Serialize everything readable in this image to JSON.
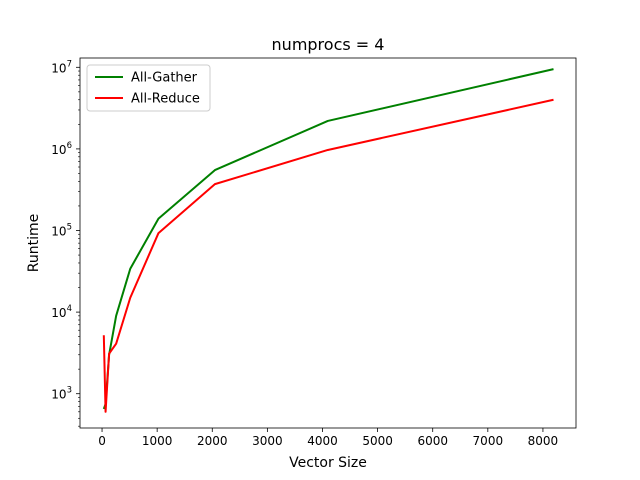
{
  "chart_data": {
    "type": "line",
    "title": "numprocs = 4",
    "xlabel": "Vector Size",
    "ylabel": "Runtime",
    "xlim": [
      -400,
      8600
    ],
    "ylim": [
      380,
      13000000
    ],
    "yscale": "log",
    "grid": false,
    "legend_position": "top-left",
    "x_ticks": [
      {
        "value": 0,
        "label": "0"
      },
      {
        "value": 1000,
        "label": "1000"
      },
      {
        "value": 2000,
        "label": "2000"
      },
      {
        "value": 3000,
        "label": "3000"
      },
      {
        "value": 4000,
        "label": "4000"
      },
      {
        "value": 5000,
        "label": "5000"
      },
      {
        "value": 6000,
        "label": "6000"
      },
      {
        "value": 7000,
        "label": "7000"
      },
      {
        "value": 8000,
        "label": "8000"
      }
    ],
    "y_ticks": [
      {
        "value": 1000,
        "base": "10",
        "exp": "3"
      },
      {
        "value": 10000,
        "base": "10",
        "exp": "4"
      },
      {
        "value": 100000,
        "base": "10",
        "exp": "5"
      },
      {
        "value": 1000000,
        "base": "10",
        "exp": "6"
      },
      {
        "value": 10000000,
        "base": "10",
        "exp": "7"
      }
    ],
    "series": [
      {
        "name": "All-Gather",
        "color": "#008000",
        "x": [
          32,
          64,
          128,
          256,
          512,
          1024,
          2048,
          4096,
          8192
        ],
        "y": [
          650,
          750,
          3000,
          9000,
          34000,
          140000,
          550000,
          2200000,
          9500000
        ]
      },
      {
        "name": "All-Reduce",
        "color": "#ff0000",
        "x": [
          32,
          64,
          128,
          256,
          512,
          1024,
          2048,
          4096,
          8192
        ],
        "y": [
          5200,
          600,
          3100,
          4100,
          15000,
          93000,
          370000,
          970000,
          4000000
        ]
      }
    ]
  }
}
